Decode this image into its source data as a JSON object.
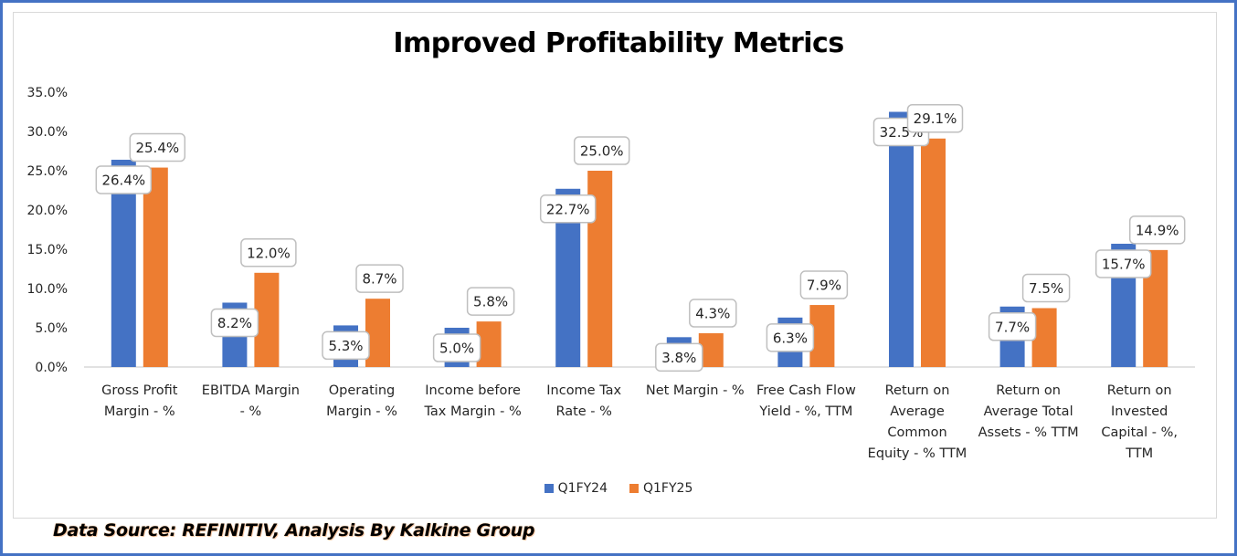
{
  "colors": {
    "frame": "#4472c4",
    "series_q1fy24": "#4472c4",
    "series_q1fy25": "#ed7d31",
    "gridline": "#d9d9d9",
    "label_border": "#bfbfbf"
  },
  "footnote": "Data Source: REFINITIV, Analysis By Kalkine Group",
  "chart_data": {
    "type": "bar",
    "title": "Improved Profitability Metrics",
    "xlabel": "",
    "ylabel": "",
    "ylim": [
      0,
      35
    ],
    "yticks": [
      0,
      5,
      10,
      15,
      20,
      25,
      30,
      35
    ],
    "ytick_labels": [
      "0.0%",
      "5.0%",
      "10.0%",
      "15.0%",
      "20.0%",
      "25.0%",
      "30.0%",
      "35.0%"
    ],
    "grid": false,
    "legend_position": "bottom",
    "categories": [
      [
        "Gross Profit",
        "Margin - %"
      ],
      [
        "EBITDA Margin",
        "- %"
      ],
      [
        "Operating",
        "Margin - %"
      ],
      [
        "Income before",
        "Tax Margin - %"
      ],
      [
        "Income Tax",
        "Rate - %"
      ],
      [
        "Net Margin - %"
      ],
      [
        "Free Cash Flow",
        "Yield - %, TTM"
      ],
      [
        "Return on",
        "Average",
        "Common",
        "Equity - % TTM"
      ],
      [
        "Return on",
        "Average Total",
        "Assets - %  TTM"
      ],
      [
        "Return on",
        "Invested",
        "Capital - %,",
        "TTM"
      ]
    ],
    "series": [
      {
        "name": "Q1FY24",
        "values": [
          26.4,
          8.2,
          5.3,
          5.0,
          22.7,
          3.8,
          6.3,
          32.5,
          7.7,
          15.7
        ],
        "labels": [
          "26.4%",
          "8.2%",
          "5.3%",
          "5.0%",
          "22.7%",
          "3.8%",
          "6.3%",
          "32.5%",
          "7.7%",
          "15.7%"
        ]
      },
      {
        "name": "Q1FY25",
        "values": [
          25.4,
          12.0,
          8.7,
          5.8,
          25.0,
          4.3,
          7.9,
          29.1,
          7.5,
          14.9
        ],
        "labels": [
          "25.4%",
          "12.0%",
          "8.7%",
          "5.8%",
          "25.0%",
          "4.3%",
          "7.9%",
          "29.1%",
          "7.5%",
          "14.9%"
        ]
      }
    ]
  }
}
